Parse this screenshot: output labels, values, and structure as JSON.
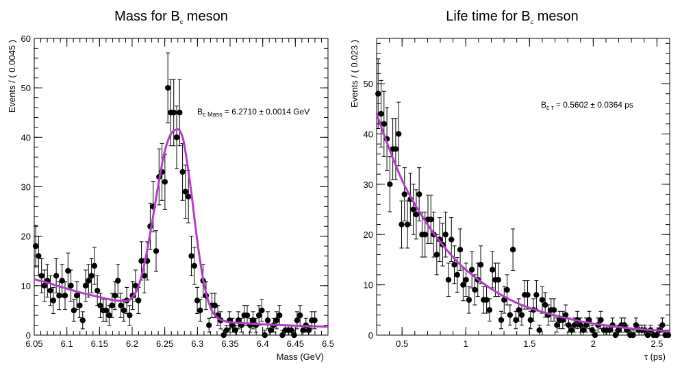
{
  "chart_data": [
    {
      "type": "scatter",
      "title_main": "Mass for B",
      "title_sub": "c",
      "title_tail": " meson",
      "xlabel": "Mass (GeV)",
      "ylabel": "Events / ( 0.0045 )",
      "xlim": [
        6.05,
        6.5
      ],
      "ylim": [
        0,
        60
      ],
      "xticks": [
        6.05,
        6.1,
        6.15,
        6.2,
        6.25,
        6.3,
        6.35,
        6.4,
        6.45,
        6.5
      ],
      "xtick_labels": [
        "6.05",
        "6.1",
        "6.15",
        "6.2",
        "6.25",
        "6.3",
        "6.35",
        "6.4",
        "6.45",
        "6.5"
      ],
      "yticks": [
        0,
        10,
        20,
        30,
        40,
        50,
        60
      ],
      "ytick_labels": [
        "0",
        "10",
        "20",
        "30",
        "40",
        "50",
        "60"
      ],
      "annotation_prefix": "B",
      "annotation_sub": "c Mass",
      "annotation_value": " = 6.2710 ± 0.0014 GeV",
      "fit_color": "#b43cc8",
      "marker_color": "#000000",
      "data": {
        "x": [
          6.0522,
          6.0567,
          6.0612,
          6.0657,
          6.0702,
          6.0747,
          6.0792,
          6.0837,
          6.0882,
          6.0927,
          6.0972,
          6.1017,
          6.1062,
          6.1107,
          6.1152,
          6.1197,
          6.1242,
          6.1287,
          6.1332,
          6.1377,
          6.1422,
          6.1467,
          6.1512,
          6.1557,
          6.1602,
          6.1647,
          6.1692,
          6.1737,
          6.1782,
          6.1827,
          6.1872,
          6.1917,
          6.1962,
          6.2007,
          6.2052,
          6.2097,
          6.2142,
          6.2187,
          6.2232,
          6.2277,
          6.2322,
          6.2367,
          6.2412,
          6.2457,
          6.2502,
          6.2547,
          6.2592,
          6.2637,
          6.2682,
          6.2727,
          6.2772,
          6.2817,
          6.2862,
          6.2907,
          6.2952,
          6.2997,
          6.3042,
          6.3087,
          6.3132,
          6.3177,
          6.3222,
          6.3267,
          6.3312,
          6.3357,
          6.3402,
          6.3447,
          6.3492,
          6.3537,
          6.3582,
          6.3627,
          6.3672,
          6.3717,
          6.3762,
          6.3807,
          6.3852,
          6.3897,
          6.3942,
          6.3987,
          6.4032,
          6.4077,
          6.4122,
          6.4167,
          6.4212,
          6.4257,
          6.4302,
          6.4347,
          6.4392,
          6.4437,
          6.4482,
          6.4527,
          6.4572,
          6.4617,
          6.4662,
          6.4707,
          6.4752,
          6.4797
        ],
        "y": [
          18,
          16,
          12,
          10,
          11,
          9,
          7,
          12,
          8,
          11,
          8,
          13,
          10,
          5,
          8,
          6,
          3,
          10,
          11,
          12,
          14,
          9,
          6,
          5,
          5,
          4,
          6,
          8,
          11,
          6,
          5,
          7,
          4,
          8,
          10,
          7,
          15,
          12,
          15,
          22,
          26,
          17,
          32,
          33,
          31,
          50,
          45,
          45,
          40,
          45,
          33,
          29,
          28,
          16,
          14,
          7,
          5,
          11,
          8,
          2,
          6,
          6,
          4,
          3,
          0,
          1,
          3,
          2,
          1,
          3,
          2,
          4,
          4,
          2,
          3,
          2,
          4,
          5,
          0,
          3,
          1,
          2,
          3,
          4,
          0,
          1,
          1,
          1,
          0,
          3,
          4,
          1,
          2,
          1,
          3,
          3
        ]
      },
      "fit": {
        "x": [
          6.05,
          6.07,
          6.09,
          6.11,
          6.13,
          6.15,
          6.17,
          6.19,
          6.2,
          6.21,
          6.22,
          6.23,
          6.24,
          6.25,
          6.26,
          6.27,
          6.275,
          6.28,
          6.29,
          6.3,
          6.31,
          6.32,
          6.33,
          6.34,
          6.35,
          6.37,
          6.4,
          6.45,
          6.5
        ],
        "y": [
          11.3,
          10.6,
          9.8,
          9.0,
          8.3,
          7.7,
          7.1,
          6.9,
          7.6,
          10.0,
          15.2,
          22.4,
          30.3,
          37.2,
          40.8,
          41.6,
          40.8,
          38.4,
          29.5,
          18.8,
          10.4,
          5.6,
          3.6,
          2.9,
          2.6,
          2.4,
          2.2,
          1.9,
          1.7
        ]
      }
    },
    {
      "type": "scatter",
      "title_main": "Life time for B",
      "title_sub": "c",
      "title_tail": " meson",
      "xlabel": "τ (ps)",
      "ylabel": "Events / ( 0.023 )",
      "xlim": [
        0.3,
        2.6
      ],
      "ylim": [
        0,
        59
      ],
      "xticks": [
        0.5,
        1,
        1.5,
        2,
        2.5
      ],
      "xtick_labels": [
        "0.5",
        "1",
        "1.5",
        "2",
        "2.5"
      ],
      "yticks": [
        0,
        10,
        20,
        30,
        40,
        50
      ],
      "ytick_labels": [
        "0",
        "10",
        "20",
        "30",
        "40",
        "50"
      ],
      "annotation_prefix": "B",
      "annotation_sub": "c τ",
      "annotation_value": " = 0.5602 ± 0.0364 ps",
      "fit_color": "#b43cc8",
      "marker_color": "#000000",
      "data": {
        "x": [
          0.312,
          0.335,
          0.358,
          0.381,
          0.404,
          0.427,
          0.45,
          0.473,
          0.496,
          0.519,
          0.542,
          0.565,
          0.588,
          0.611,
          0.634,
          0.657,
          0.68,
          0.703,
          0.726,
          0.749,
          0.772,
          0.795,
          0.818,
          0.841,
          0.864,
          0.887,
          0.91,
          0.933,
          0.956,
          0.979,
          1.002,
          1.025,
          1.048,
          1.071,
          1.094,
          1.117,
          1.14,
          1.163,
          1.186,
          1.209,
          1.232,
          1.255,
          1.278,
          1.301,
          1.324,
          1.347,
          1.37,
          1.393,
          1.416,
          1.439,
          1.462,
          1.485,
          1.508,
          1.531,
          1.554,
          1.577,
          1.6,
          1.623,
          1.646,
          1.669,
          1.692,
          1.715,
          1.738,
          1.761,
          1.784,
          1.807,
          1.83,
          1.853,
          1.876,
          1.899,
          1.922,
          1.945,
          1.968,
          1.991,
          2.014,
          2.037,
          2.06,
          2.083,
          2.106,
          2.129,
          2.152,
          2.175,
          2.198,
          2.221,
          2.244,
          2.267,
          2.29,
          2.313,
          2.336,
          2.359,
          2.382,
          2.405,
          2.428,
          2.451,
          2.474,
          2.497,
          2.52,
          2.543,
          2.566,
          2.589
        ],
        "y": [
          48,
          44,
          42,
          39,
          30,
          37,
          37,
          40,
          22,
          28,
          22,
          27,
          25,
          24,
          28,
          20,
          20,
          23,
          23,
          20,
          16,
          19,
          18,
          20,
          11,
          19,
          14,
          12,
          17,
          10,
          11,
          7,
          13,
          9,
          11,
          14,
          7,
          7,
          5,
          13,
          11,
          11,
          3,
          7,
          9,
          4,
          17,
          3,
          5,
          4,
          8,
          8,
          3,
          5,
          8,
          1,
          7,
          6,
          4,
          5,
          5,
          2,
          3,
          3,
          4,
          2,
          1,
          2,
          3,
          2,
          1,
          2,
          3,
          1,
          0,
          2,
          3,
          1,
          1,
          1,
          2,
          0,
          1,
          2,
          2,
          1,
          0,
          0,
          2,
          1,
          1,
          1,
          0,
          1,
          0,
          0,
          1,
          2,
          0,
          0
        ]
      },
      "fit": {
        "x": [
          0.3,
          0.4,
          0.5,
          0.6,
          0.7,
          0.8,
          0.9,
          1.0,
          1.2,
          1.4,
          1.6,
          1.8,
          2.0,
          2.2,
          2.4,
          2.6
        ],
        "y": [
          44,
          37,
          30.8,
          26,
          22,
          18.5,
          15.5,
          13,
          9.2,
          6.4,
          4.6,
          3.3,
          2.3,
          1.6,
          1.1,
          0.8
        ]
      }
    }
  ]
}
